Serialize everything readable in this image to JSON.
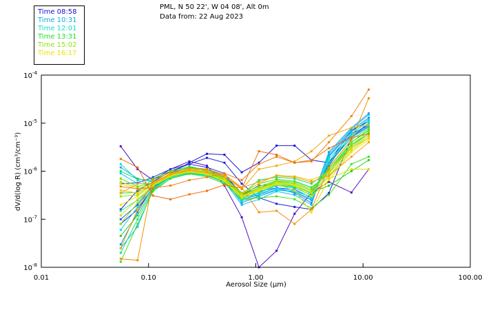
{
  "header": {
    "station": "PML, N 50 22', W 04 08', Alt 0m",
    "date": "Data from: 22 Aug 2023"
  },
  "legend": [
    {
      "label": "Time 08:58",
      "color": "#1010d0"
    },
    {
      "label": "Time 10:31",
      "color": "#10a8e0"
    },
    {
      "label": "Time 12:01",
      "color": "#10e0c8"
    },
    {
      "label": "Time 13:31",
      "color": "#20e020"
    },
    {
      "label": "Time 15:02",
      "color": "#90e010"
    },
    {
      "label": "Time 16:17",
      "color": "#f0e000"
    }
  ],
  "chart_data": {
    "type": "line",
    "xscale": "log",
    "yscale": "log",
    "xlabel": "Aerosol Size (µm)",
    "ylabel": "dV/d(log R) (cm³/cm⁻³)",
    "xlim": [
      0.01,
      100
    ],
    "ylim": [
      1e-08,
      0.0001
    ],
    "x_ticks": [
      {
        "value": 0.01,
        "label": "0.01"
      },
      {
        "value": 0.1,
        "label": "0.10"
      },
      {
        "value": 1,
        "label": "1.00"
      },
      {
        "value": 10,
        "label": "10.00"
      },
      {
        "value": 100,
        "label": "100.00"
      }
    ],
    "y_ticks": [
      {
        "value": 0.0001,
        "base": "10",
        "exp": "-4"
      },
      {
        "value": 1e-05,
        "base": "10",
        "exp": "-5"
      },
      {
        "value": 1e-06,
        "base": "10",
        "exp": "-6"
      },
      {
        "value": 1e-07,
        "base": "10",
        "exp": "-7"
      },
      {
        "value": 1e-08,
        "base": "10",
        "exp": "-8"
      }
    ],
    "x": [
      0.055,
      0.079,
      0.11,
      0.16,
      0.24,
      0.35,
      0.51,
      0.74,
      1.07,
      1.56,
      2.3,
      3.3,
      4.8,
      7.8,
      11.3
    ],
    "series": [
      {
        "color": "#5010c0",
        "values": [
          3.3e-06,
          1.1e-06,
          6.5e-07,
          1.1e-06,
          1.6e-06,
          1.3e-06,
          5e-07,
          1.1e-07,
          1e-08,
          2.2e-08,
          1.3e-07,
          3.6e-07,
          6e-07,
          3.6e-07,
          1.1e-06
        ]
      },
      {
        "color": "#1818d8",
        "values": [
          8e-08,
          1.6e-07,
          4.5e-07,
          9e-07,
          1.5e-06,
          2.3e-06,
          2.2e-06,
          9.5e-07,
          1.5e-06,
          3.4e-06,
          3.4e-06,
          1.7e-06,
          1.5e-06,
          7e-06,
          1.1e-05
        ]
      },
      {
        "color": "#2020d0",
        "values": [
          1.6e-07,
          4e-07,
          6e-07,
          1e-06,
          1.4e-06,
          1.9e-06,
          1.5e-06,
          5.5e-07,
          2.8e-07,
          2.1e-07,
          1.8e-07,
          1.6e-07,
          3.5e-07,
          5e-06,
          1e-05
        ]
      },
      {
        "color": "#2038e0",
        "values": [
          5.5e-07,
          5.7e-07,
          7.5e-07,
          1.1e-06,
          1.4e-06,
          1.2e-06,
          9e-07,
          3.2e-07,
          5e-07,
          5.5e-07,
          5e-07,
          3.5e-07,
          1.3e-06,
          6e-06,
          9e-06
        ]
      },
      {
        "color": "#2060e8",
        "values": [
          1e-07,
          2e-07,
          5e-07,
          9e-07,
          1.2e-06,
          1.1e-06,
          8e-07,
          3.5e-07,
          3.8e-07,
          4.5e-07,
          4.2e-07,
          2.8e-07,
          1.5e-06,
          5e-06,
          8.5e-06
        ]
      },
      {
        "color": "#1888e8",
        "values": [
          3e-08,
          1.4e-07,
          4.8e-07,
          8e-07,
          1.1e-06,
          9.5e-07,
          7.5e-07,
          2.6e-07,
          3.2e-07,
          4.5e-07,
          3.5e-07,
          2.2e-07,
          2.1e-06,
          7e-06,
          1.3e-05
        ]
      },
      {
        "color": "#10a8e0",
        "values": [
          1.2e-06,
          7e-07,
          6e-07,
          8.5e-07,
          1e-06,
          9e-07,
          6.5e-07,
          2.2e-07,
          3e-07,
          4.2e-07,
          3.6e-07,
          2.5e-07,
          2.5e-06,
          8e-06,
          1.6e-05
        ]
      },
      {
        "color": "#10b8f0",
        "values": [
          2.5e-08,
          7e-08,
          4.2e-07,
          7.5e-07,
          9.5e-07,
          8.5e-07,
          6e-07,
          2e-07,
          2.6e-07,
          3.8e-07,
          3.2e-07,
          2e-07,
          2.3e-06,
          7.5e-06,
          1.5e-05
        ]
      },
      {
        "color": "#10c8e8",
        "values": [
          9e-07,
          5.5e-07,
          5.5e-07,
          8e-07,
          1e-06,
          8.8e-07,
          6.2e-07,
          2.4e-07,
          3e-07,
          4e-07,
          3.8e-07,
          2.6e-07,
          2e-06,
          6.5e-06,
          1.2e-05
        ]
      },
      {
        "color": "#10d8d8",
        "values": [
          6e-08,
          1.8e-07,
          4.5e-07,
          7.8e-07,
          9.8e-07,
          8.5e-07,
          6e-07,
          2.8e-07,
          3.4e-07,
          4.4e-07,
          3.9e-07,
          2.9e-07,
          1.8e-06,
          6e-06,
          1.1e-05
        ]
      },
      {
        "color": "#10e0c8",
        "values": [
          1.4e-06,
          6.5e-07,
          5e-07,
          7.2e-07,
          9.2e-07,
          8.2e-07,
          5.8e-07,
          2.5e-07,
          3.5e-07,
          5e-07,
          4.5e-07,
          3.2e-07,
          1.6e-06,
          5.5e-06,
          1e-05
        ]
      },
      {
        "color": "#10e0a8",
        "values": [
          1.5e-07,
          2.5e-07,
          4.6e-07,
          7.5e-07,
          9.5e-07,
          8.6e-07,
          6.3e-07,
          2.7e-07,
          3.6e-07,
          5.2e-07,
          4.6e-07,
          3.1e-07,
          1.4e-06,
          5e-06,
          9e-06
        ]
      },
      {
        "color": "#10e088",
        "values": [
          2e-08,
          1e-07,
          4e-07,
          7e-07,
          9e-07,
          8e-07,
          6e-07,
          2.9e-07,
          3.9e-07,
          5.6e-07,
          5e-07,
          3.4e-07,
          1.2e-06,
          4.5e-06,
          8e-06
        ]
      },
      {
        "color": "#18e060",
        "values": [
          1e-06,
          6.8e-07,
          6.5e-07,
          9.5e-07,
          1.2e-06,
          1e-06,
          7.2e-07,
          3.3e-07,
          6.5e-07,
          7.5e-07,
          7e-07,
          5.5e-07,
          1e-06,
          4e-06,
          7e-06
        ]
      },
      {
        "color": "#20e030",
        "values": [
          3.5e-07,
          3.6e-07,
          7e-07,
          1e-06,
          1.25e-06,
          1.05e-06,
          7.5e-07,
          3.5e-07,
          5.5e-07,
          6.8e-07,
          6.2e-07,
          4.6e-07,
          9e-07,
          3.5e-06,
          6e-06
        ]
      },
      {
        "color": "#20d020",
        "values": [
          4.5e-08,
          1.2e-07,
          4.3e-07,
          8.2e-07,
          1.05e-06,
          9.2e-07,
          6.6e-07,
          3e-07,
          4e-07,
          5.5e-07,
          4.8e-07,
          3.6e-07,
          5e-07,
          1e-06,
          1.7e-06
        ]
      },
      {
        "color": "#40e020",
        "values": [
          1.3e-08,
          8e-08,
          3.8e-07,
          7e-07,
          8.8e-07,
          7.6e-07,
          5.5e-07,
          2.6e-07,
          2.8e-07,
          3e-07,
          2.6e-07,
          1.7e-07,
          3.2e-07,
          1.4e-06,
          2e-06
        ]
      },
      {
        "color": "#60e010",
        "values": [
          7e-07,
          4.8e-07,
          5.8e-07,
          8.8e-07,
          1.1e-06,
          9.5e-07,
          6.8e-07,
          3.2e-07,
          4.5e-07,
          6.2e-07,
          5.6e-07,
          4e-07,
          1.1e-06,
          4e-06,
          7.5e-06
        ]
      },
      {
        "color": "#80e010",
        "values": [
          8e-08,
          2.2e-07,
          5.2e-07,
          8.5e-07,
          1.05e-06,
          9.5e-07,
          7e-07,
          3.4e-07,
          4.8e-07,
          6.4e-07,
          5.9e-07,
          4.3e-07,
          1e-06,
          3.6e-06,
          6.5e-06
        ]
      },
      {
        "color": "#90e010",
        "values": [
          3e-07,
          3.2e-07,
          5.5e-07,
          8.6e-07,
          1.05e-06,
          9.3e-07,
          6.8e-07,
          3.1e-07,
          4.4e-07,
          6e-07,
          5.5e-07,
          3.9e-07,
          9e-07,
          3.2e-06,
          6e-06
        ]
      },
      {
        "color": "#b0e010",
        "values": [
          6e-07,
          4.5e-07,
          5.3e-07,
          8e-07,
          1e-06,
          9e-07,
          6.5e-07,
          3e-07,
          4.2e-07,
          5.8e-07,
          5.2e-07,
          3.6e-07,
          8e-07,
          3e-06,
          5.5e-06
        ]
      },
      {
        "color": "#c8e000",
        "values": [
          1.2e-07,
          2.6e-07,
          5e-07,
          8e-07,
          9.8e-07,
          8.8e-07,
          6.3e-07,
          2.9e-07,
          4e-07,
          5.5e-07,
          5e-07,
          3.5e-07,
          7.5e-07,
          2.7e-06,
          5e-06
        ]
      },
      {
        "color": "#e0e000",
        "values": [
          5.5e-07,
          4.2e-07,
          5e-07,
          7.8e-07,
          9.6e-07,
          8.6e-07,
          6.2e-07,
          2.8e-07,
          3.9e-07,
          5.3e-07,
          4e-07,
          1.4e-07,
          7e-07,
          1.1e-06,
          1.1e-06
        ]
      },
      {
        "color": "#f0e000",
        "values": [
          2e-07,
          3e-07,
          5.2e-07,
          8.2e-07,
          1e-06,
          9e-07,
          6.4e-07,
          3e-07,
          4.1e-07,
          5.6e-07,
          5e-07,
          3e-07,
          6.5e-07,
          2.5e-06,
          4.5e-06
        ]
      },
      {
        "color": "#f0c800",
        "values": [
          4e-07,
          3.5e-07,
          5.6e-07,
          8.8e-07,
          1.08e-06,
          9.8e-07,
          7.2e-07,
          3.4e-07,
          5.5e-07,
          8.2e-07,
          7.8e-07,
          6.5e-07,
          9.5e-07,
          3e-06,
          5e-06
        ]
      },
      {
        "color": "#f0a800",
        "values": [
          2.5e-08,
          1.6e-07,
          5.8e-07,
          9e-07,
          1.1e-06,
          1.05e-06,
          8e-07,
          4.2e-07,
          1.1e-06,
          1.3e-06,
          1.6e-06,
          2.6e-06,
          5.5e-06,
          8e-06,
          9e-06
        ]
      },
      {
        "color": "#f09000",
        "values": [
          1.5e-08,
          1.4e-08,
          6.6e-07,
          9.5e-07,
          1.15e-06,
          1.1e-06,
          8.5e-07,
          4.6e-07,
          1.4e-07,
          1.5e-07,
          8e-08,
          1.6e-07,
          1.2e-06,
          4.5e-06,
          3.3e-05
        ]
      },
      {
        "color": "#f08010",
        "values": [
          4.8e-07,
          4.3e-07,
          4.5e-07,
          5e-07,
          6.5e-07,
          7.5e-07,
          9e-07,
          6.5e-07,
          1.4e-06,
          2e-06,
          1.5e-06,
          1.6e-06,
          4e-06,
          1.4e-05,
          5e-05
        ]
      },
      {
        "color": "#f07010",
        "values": [
          1.8e-06,
          1.2e-06,
          3.1e-07,
          2.6e-07,
          3.3e-07,
          3.9e-07,
          5.2e-07,
          4.4e-07,
          2.6e-06,
          2.2e-06,
          1.5e-06,
          1.7e-06,
          3e-06,
          5e-06,
          6e-06
        ]
      },
      {
        "color": "#f0a010",
        "values": [
          3.5e-07,
          5.5e-07,
          5.5e-07,
          8.5e-07,
          1.05e-06,
          9.5e-07,
          7.8e-07,
          4.5e-07,
          6e-07,
          8e-07,
          7.5e-07,
          6e-07,
          8e-07,
          2e-06,
          4e-06
        ]
      }
    ]
  }
}
